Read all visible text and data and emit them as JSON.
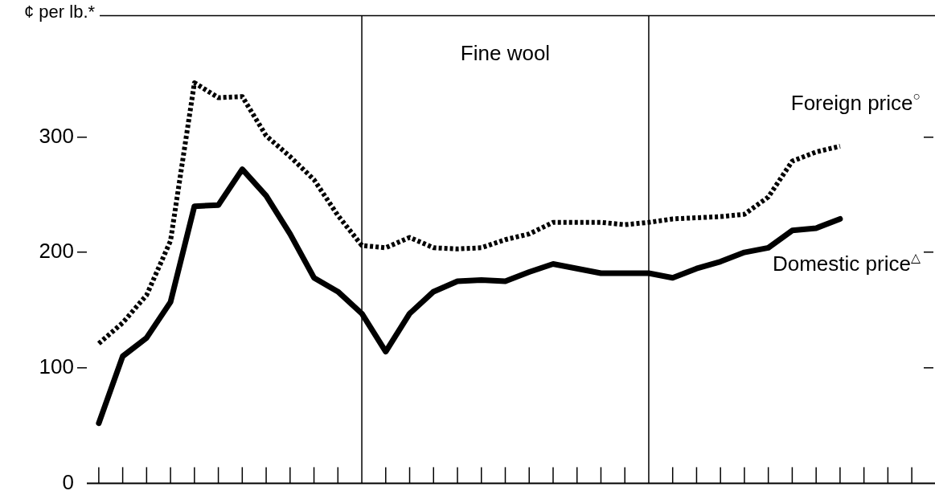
{
  "chart_data": {
    "type": "line",
    "title": "Fine wool",
    "ylabel": "¢ per lb.*",
    "categories": [
      null,
      null,
      null,
      null,
      null,
      null,
      null,
      null,
      null,
      null,
      null,
      null,
      null,
      null,
      null,
      null,
      null,
      null,
      null,
      null,
      null,
      null,
      null,
      null,
      null,
      null,
      null,
      null,
      null,
      null,
      null,
      null,
      null,
      null,
      null
    ],
    "ylim": [
      0,
      405
    ],
    "yticks": [
      0,
      100,
      200,
      300
    ],
    "grid": false,
    "marker": "none",
    "series": [
      {
        "name": "Foreign price$^{○}$",
        "color": "#000000",
        "line_style": "dotted",
        "values": [
          121,
          139,
          163,
          210,
          347,
          334,
          335,
          301,
          283,
          263,
          232,
          206,
          204,
          213,
          204,
          203,
          204,
          211,
          216,
          226,
          226,
          226,
          224,
          226,
          229,
          230,
          231,
          233,
          248,
          279,
          287,
          292,
          null,
          null,
          null
        ]
      },
      {
        "name": "Domestic price$^{△}$",
        "color": "#000000",
        "line_style": "solid",
        "values": [
          52,
          110,
          126,
          157,
          240,
          241,
          272,
          249,
          216,
          178,
          166,
          147,
          114,
          147,
          166,
          175,
          176,
          175,
          183,
          190,
          186,
          182,
          182,
          182,
          178,
          186,
          192,
          200,
          204,
          219,
          221,
          229,
          null,
          null,
          null
        ]
      }
    ]
  }
}
